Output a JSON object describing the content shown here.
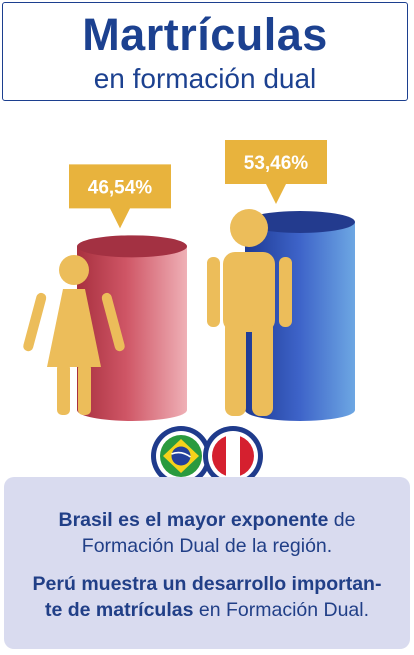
{
  "header": {
    "title": "Martrículas",
    "subtitle": "en formación dual"
  },
  "chart_data": {
    "type": "bar",
    "categories": [
      "Mujeres",
      "Hombres"
    ],
    "values": [
      46.54,
      53.46
    ],
    "value_labels": [
      "46,54%",
      "53,46%"
    ],
    "icons": [
      "woman-icon",
      "man-icon"
    ],
    "colors": [
      "#c0475a",
      "#2f5cc0"
    ],
    "title": "",
    "xlabel": "",
    "ylabel": "",
    "ylim": [
      0,
      60
    ]
  },
  "flags": [
    "brazil-flag-icon",
    "peru-flag-icon"
  ],
  "info": {
    "p1_bold": "Brasil es el mayor exponente",
    "p1_rest": " de Formación Dual de la región.",
    "p2_bold": "Perú muestra un desarrollo importan- te de matrículas",
    "p2_rest": " en Formación Dual."
  },
  "colors": {
    "primary": "#1c4190",
    "badge": "#e8b33d",
    "figure": "#ecbd5a",
    "box_bg": "#d9dbef"
  }
}
